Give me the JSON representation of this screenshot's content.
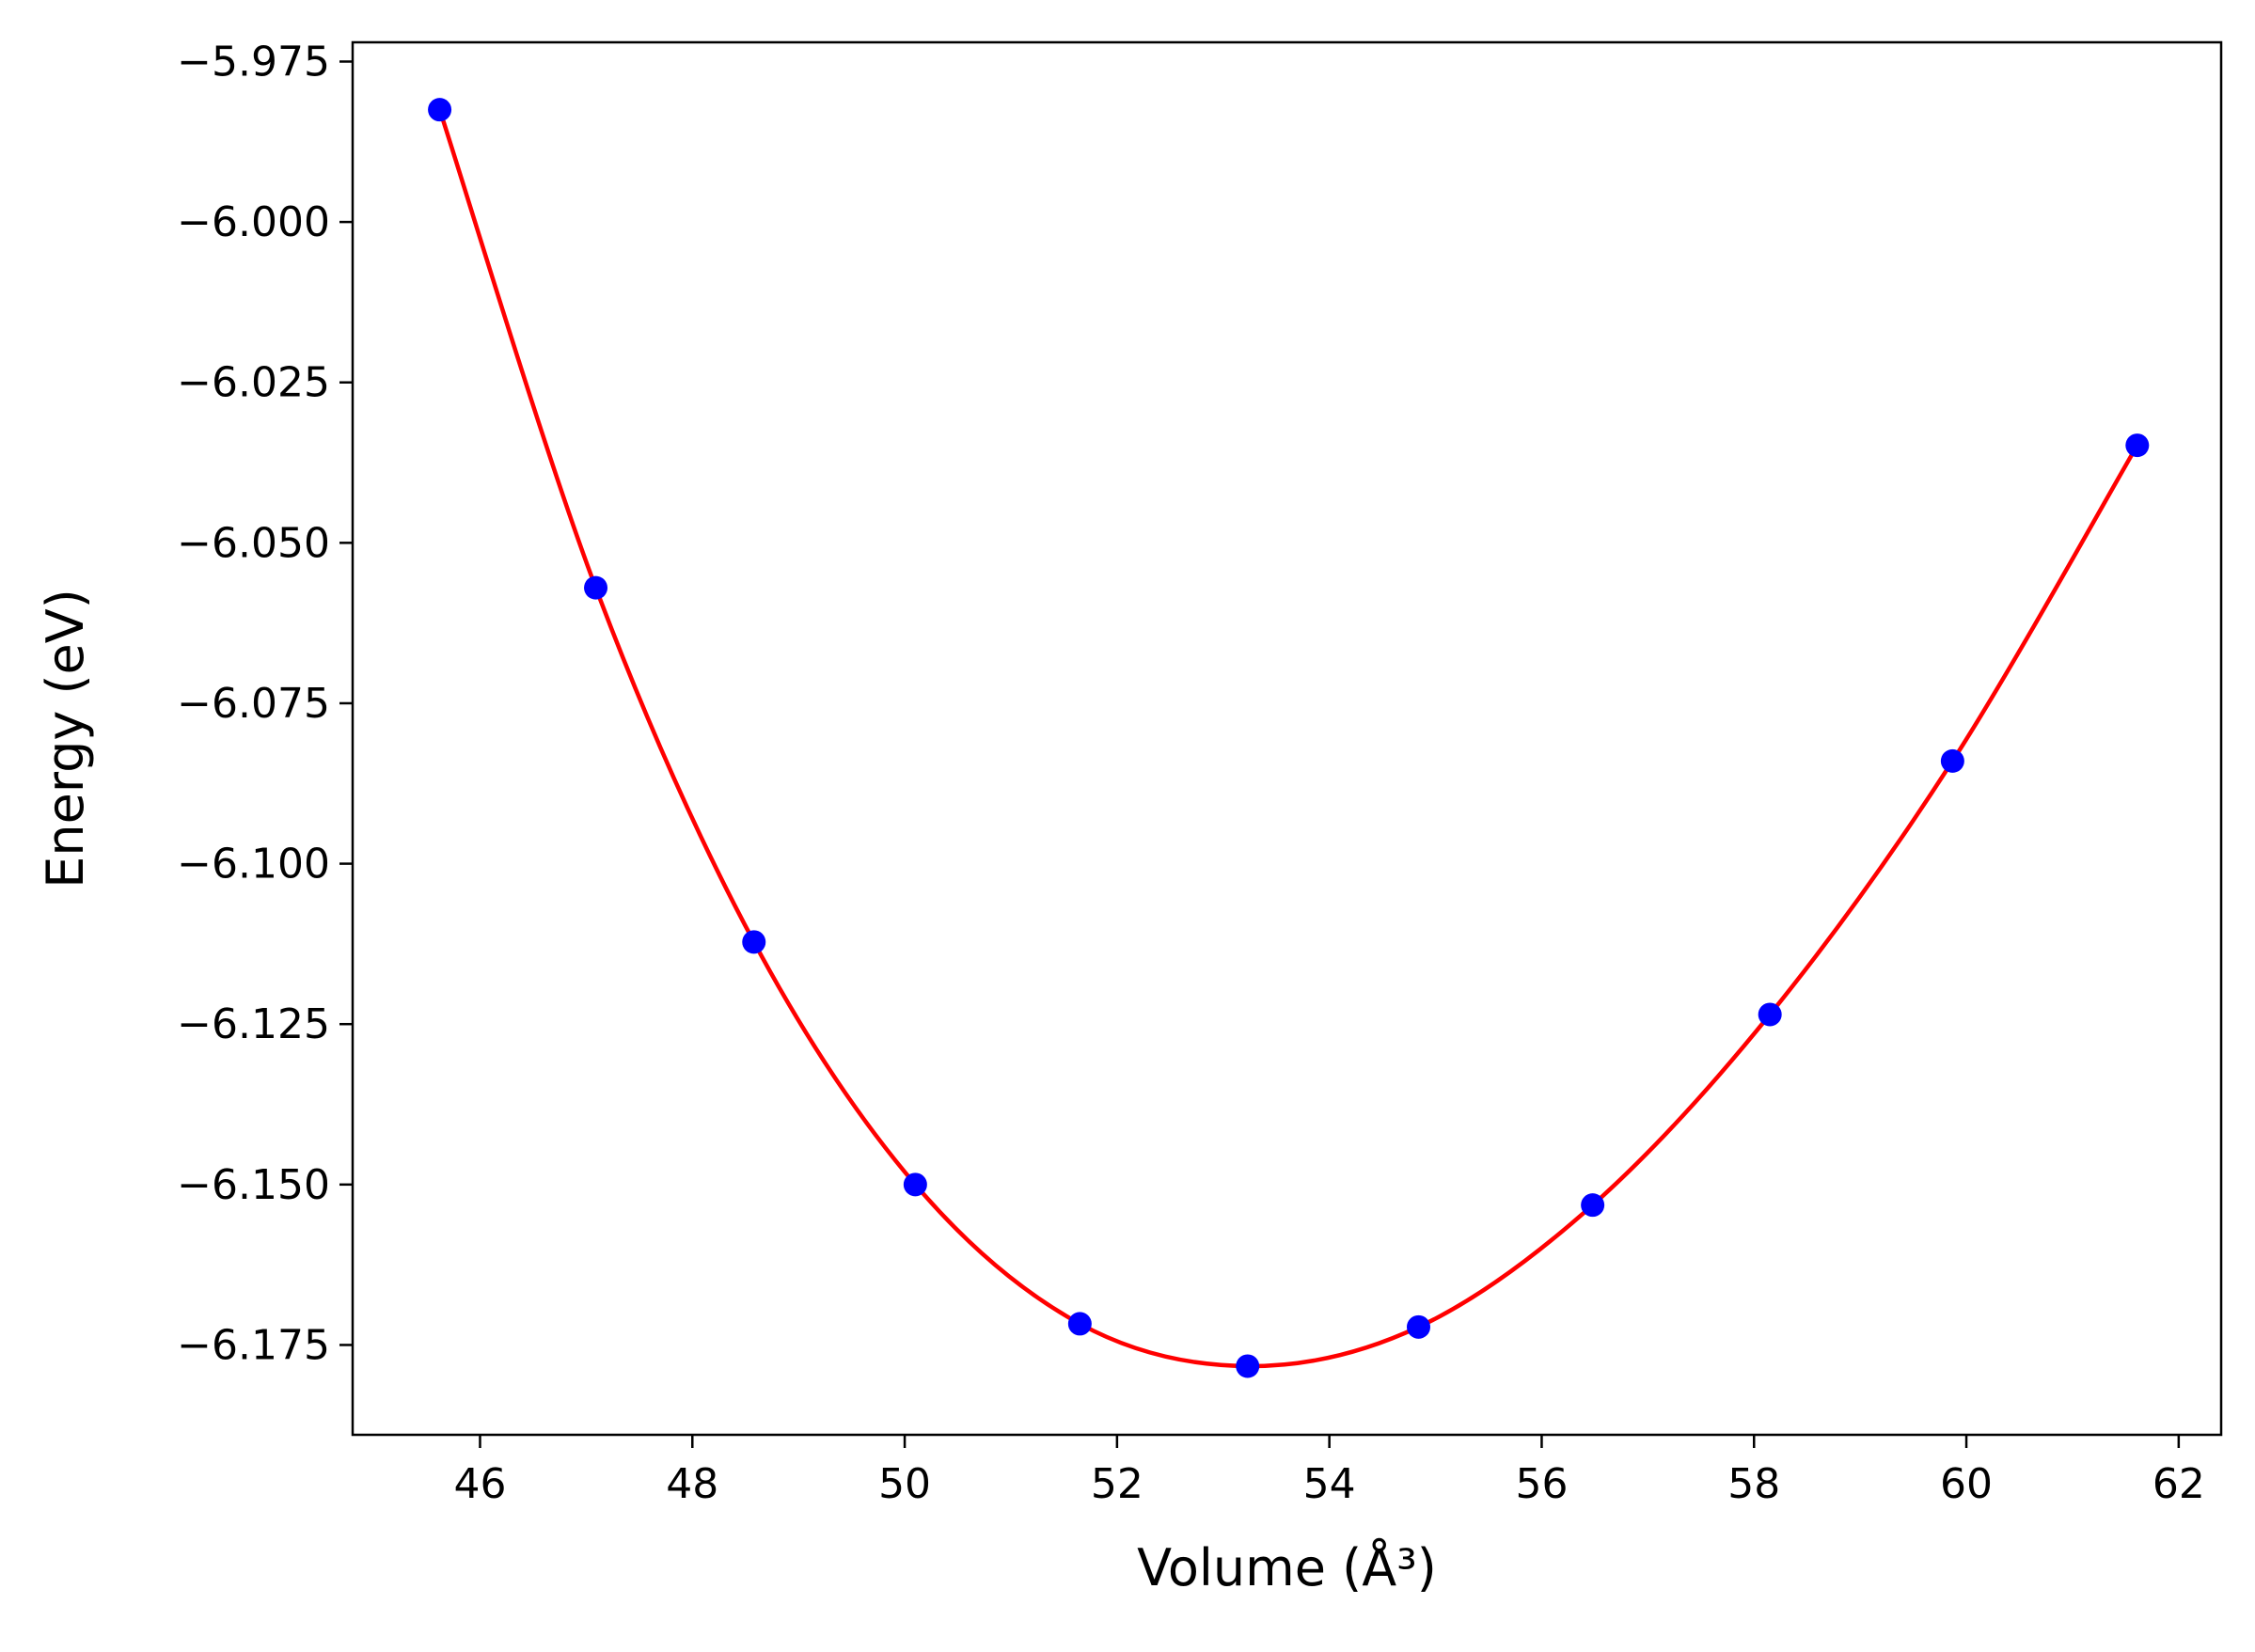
{
  "chart_data": {
    "type": "line",
    "xlabel": "Volume (Å³)",
    "ylabel": "Energy (eV)",
    "xlim": [
      44.8,
      62.4
    ],
    "ylim": [
      -6.189,
      -5.972
    ],
    "x_ticks": [
      46,
      48,
      50,
      52,
      54,
      56,
      58,
      60,
      62
    ],
    "y_ticks": [
      -5.975,
      -6.0,
      -6.025,
      -6.05,
      -6.075,
      -6.1,
      -6.125,
      -6.15,
      -6.175
    ],
    "x_tick_labels": [
      "46",
      "48",
      "50",
      "52",
      "54",
      "56",
      "58",
      "60",
      "62"
    ],
    "y_tick_labels": [
      "−5.975",
      "−6.000",
      "−6.025",
      "−6.050",
      "−6.075",
      "−6.100",
      "−6.125",
      "−6.150",
      "−6.175"
    ],
    "grid": false,
    "series": [
      {
        "kind": "scatter",
        "color": "#0000ff",
        "x": [
          45.62,
          47.09,
          48.58,
          50.1,
          51.65,
          53.23,
          54.84,
          56.48,
          58.15,
          59.87,
          61.61
        ],
        "y": [
          -5.9825,
          -6.057,
          -6.1122,
          -6.15,
          -6.1717,
          -6.1783,
          -6.1722,
          -6.1532,
          -6.1235,
          -6.084,
          -6.0348
        ]
      },
      {
        "kind": "line",
        "color": "#ff0000",
        "x": [
          45.62,
          47.09,
          48.58,
          50.1,
          51.65,
          53.23,
          54.84,
          56.48,
          58.15,
          59.87,
          61.61
        ],
        "y": [
          -5.9825,
          -6.057,
          -6.1122,
          -6.15,
          -6.1717,
          -6.1783,
          -6.1722,
          -6.1532,
          -6.1235,
          -6.084,
          -6.0348
        ]
      }
    ]
  }
}
